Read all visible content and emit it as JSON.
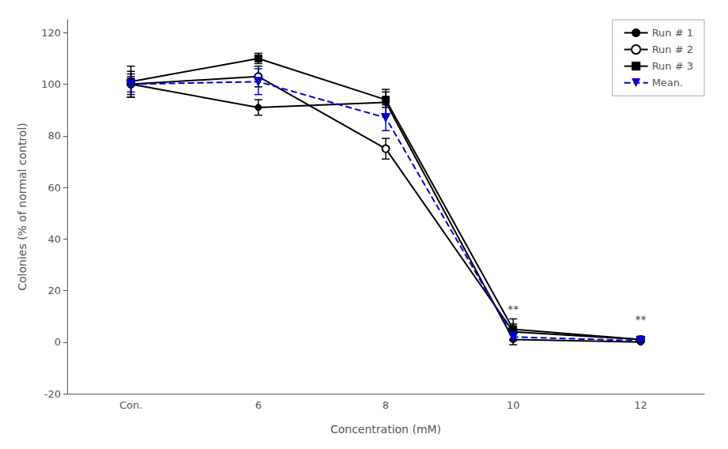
{
  "chart_data": {
    "type": "line",
    "xlabel": "Concentration (mM)",
    "ylabel": "Colonies (% of normal control)",
    "categories": [
      "Con.",
      "6",
      "8",
      "10",
      "12"
    ],
    "series": [
      {
        "name": "Run # 1",
        "color": "#000000",
        "marker": "circle",
        "line_style": "solid",
        "values": [
          100,
          91,
          93,
          1,
          0
        ],
        "yerr": [
          5,
          3,
          5,
          2,
          0
        ]
      },
      {
        "name": "Run # 2",
        "color": "#000000",
        "marker": "open_circle",
        "line_style": "solid",
        "values": [
          100,
          103,
          75,
          4,
          1
        ],
        "yerr": [
          4,
          4,
          4,
          3,
          0.5
        ]
      },
      {
        "name": "Run # 3",
        "color": "#000000",
        "marker": "square",
        "line_style": "solid",
        "values": [
          101,
          110,
          94,
          5,
          1
        ],
        "yerr": [
          6,
          2,
          3,
          4,
          0.5
        ]
      },
      {
        "name": "Mean.",
        "color": "#0000cc",
        "marker": "triangle_down",
        "line_style": "dashed",
        "values": [
          100,
          101,
          87,
          2,
          0.5
        ],
        "yerr": [
          3,
          5,
          5,
          1.5,
          0.3
        ]
      }
    ],
    "annotations": [
      {
        "x": "10",
        "y": 10,
        "text": "**"
      },
      {
        "x": "12",
        "y": 6,
        "text": "**"
      }
    ],
    "ylim": [
      -20,
      125
    ],
    "yticks": [
      -20,
      0,
      20,
      40,
      60,
      80,
      100,
      120
    ],
    "grid": false,
    "legend": "upper right"
  }
}
